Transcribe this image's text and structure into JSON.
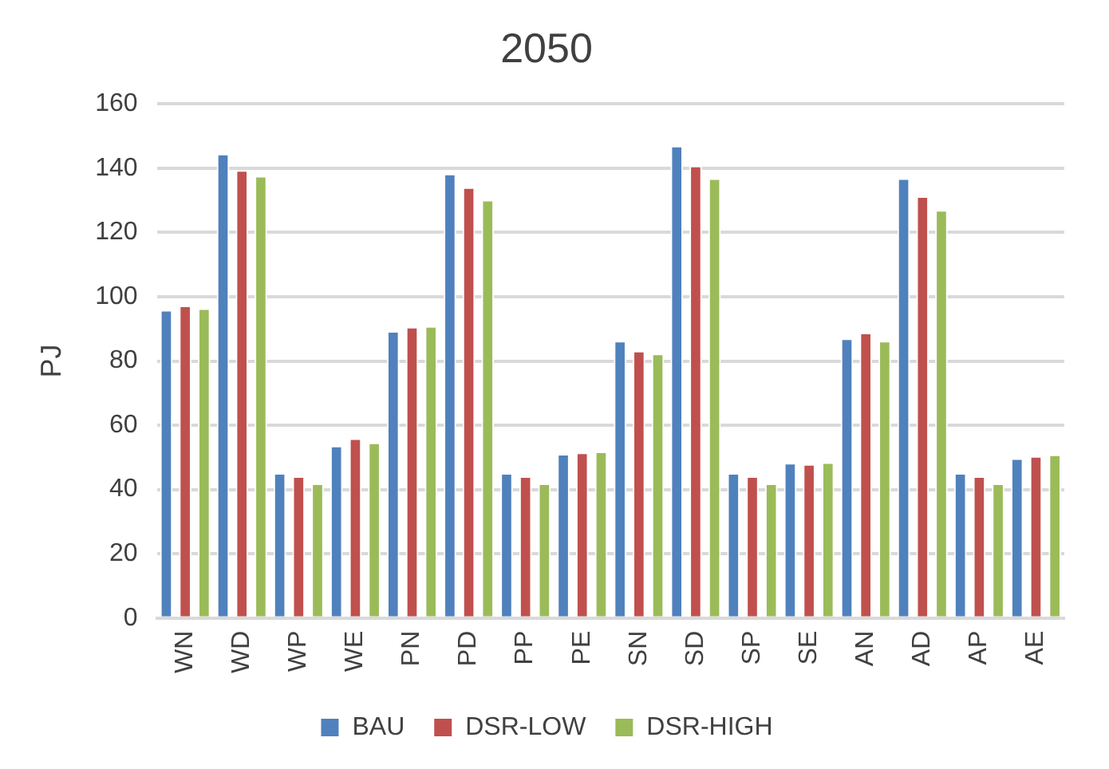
{
  "chart_data": {
    "type": "bar",
    "title": "2050",
    "ylabel": "PJ",
    "categories": [
      "WN",
      "WD",
      "WP",
      "WE",
      "PN",
      "PD",
      "PP",
      "PE",
      "SN",
      "SD",
      "SP",
      "SE",
      "AN",
      "AD",
      "AP",
      "AE"
    ],
    "series": [
      {
        "name": "BAU",
        "color": "#4f81bd",
        "values": [
          95.9,
          144.5,
          45.1,
          53.6,
          89.3,
          138.3,
          45.1,
          51.1,
          86.3,
          147.0,
          45.1,
          48.3,
          87.0,
          136.9,
          45.1,
          49.7
        ]
      },
      {
        "name": "DSR-LOW",
        "color": "#c0504d",
        "values": [
          97.3,
          139.4,
          44.1,
          55.9,
          90.6,
          134.1,
          44.1,
          51.5,
          83.2,
          140.8,
          44.1,
          47.9,
          88.8,
          131.3,
          44.1,
          50.4
        ]
      },
      {
        "name": "DSR-HIGH",
        "color": "#9bbb59",
        "values": [
          96.4,
          137.6,
          41.9,
          54.6,
          90.9,
          130.2,
          41.9,
          51.8,
          82.3,
          136.9,
          41.9,
          48.5,
          86.3,
          127.0,
          41.9,
          50.9
        ]
      }
    ],
    "ylim": [
      0,
      160
    ],
    "yticks": [
      0,
      20,
      40,
      60,
      80,
      100,
      120,
      140,
      160
    ],
    "grid": "y",
    "legend": "bottom"
  }
}
